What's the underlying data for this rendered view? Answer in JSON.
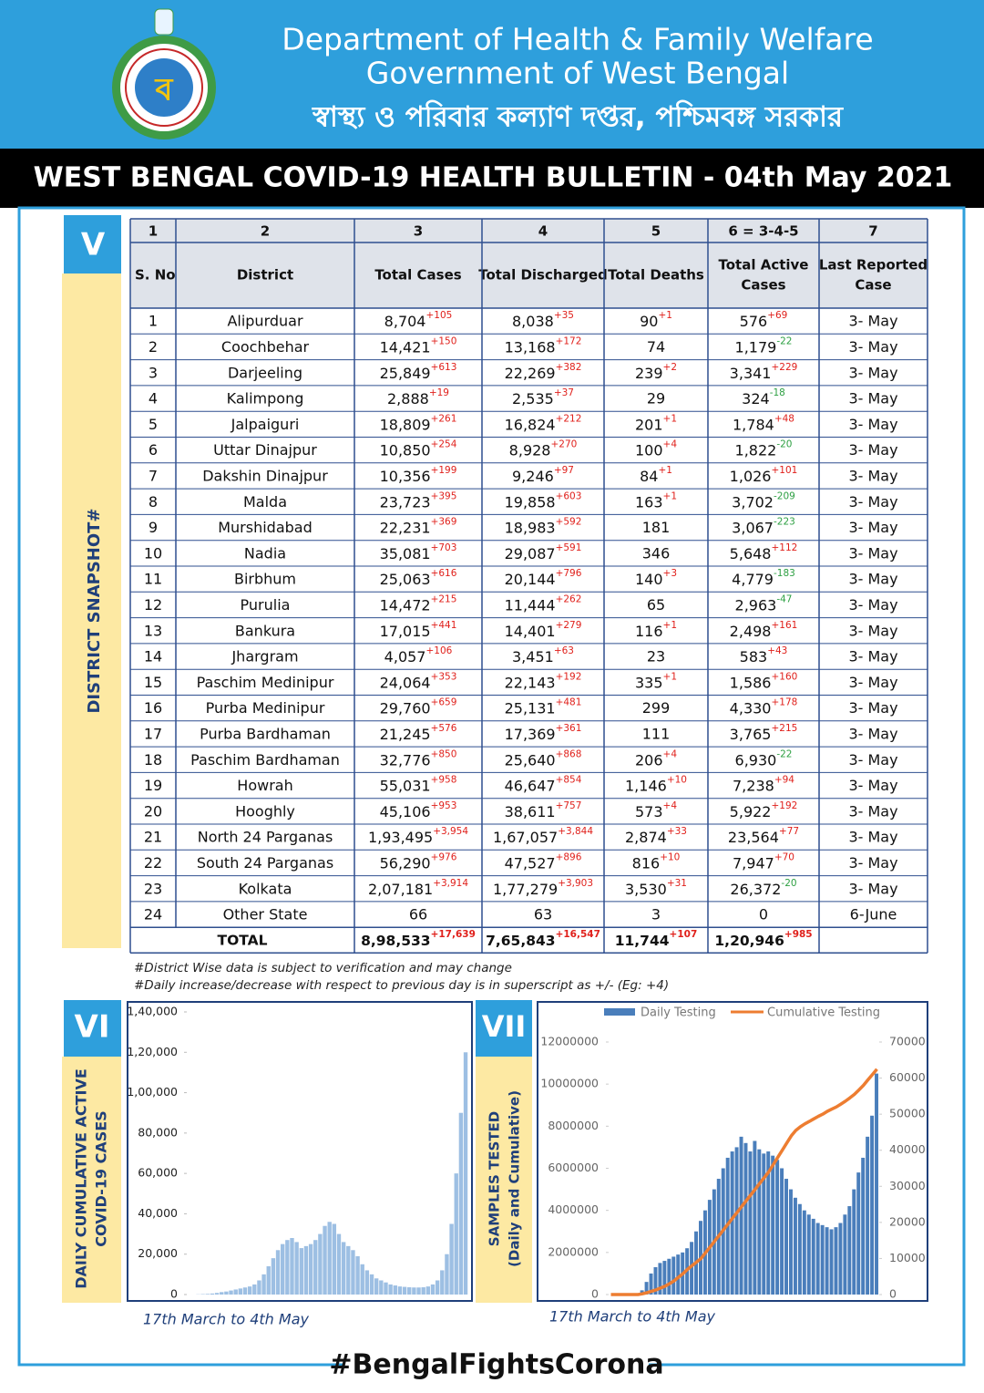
{
  "header": {
    "line1": "Department of Health & Family Welfare",
    "line2": "Government of West Bengal",
    "line3": "স্বাস্থ্য ও পরিবার কল্যাণ দপ্তর, পশ্চিমবঙ্গ সরকার",
    "title": "WEST BENGAL COVID-19 HEALTH BULLETIN - 04th May 2021"
  },
  "sections": {
    "district": {
      "numeral": "V",
      "label": "DISTRICT SNAPSHOT#"
    },
    "active": {
      "numeral": "VI",
      "label": [
        "DAILY  CUMULATIVE  ACTIVE",
        "COVID-19 CASES"
      ]
    },
    "tests": {
      "numeral": "VII",
      "label": [
        "SAMPLES TESTED",
        "(Daily and Cumulative)"
      ]
    }
  },
  "table": {
    "col_numbers": [
      "1",
      "2",
      "3",
      "4",
      "5",
      "6 = 3-4-5",
      "7"
    ],
    "headers": [
      [
        "S. No"
      ],
      [
        "District"
      ],
      [
        "Total Cases"
      ],
      [
        "Total Discharged"
      ],
      [
        "Total Deaths"
      ],
      [
        "Total Active",
        "Cases"
      ],
      [
        "Last Reported",
        "Case"
      ]
    ],
    "rows": [
      [
        "1",
        "Alipurduar",
        {
          "text": "8,704",
          "sup": "+105"
        },
        {
          "text": "8,038",
          "sup": "+35"
        },
        {
          "text": "90",
          "sup": "+1"
        },
        {
          "text": "576",
          "sup": "+69"
        },
        "3- May"
      ],
      [
        "2",
        "Coochbehar",
        {
          "text": "14,421",
          "sup": "+150"
        },
        {
          "text": "13,168",
          "sup": "+172"
        },
        "74",
        {
          "text": "1,179",
          "sup": "-22"
        },
        "3- May"
      ],
      [
        "3",
        "Darjeeling",
        {
          "text": "25,849",
          "sup": "+613"
        },
        {
          "text": "22,269",
          "sup": "+382"
        },
        {
          "text": "239",
          "sup": "+2"
        },
        {
          "text": "3,341",
          "sup": "+229"
        },
        "3- May"
      ],
      [
        "4",
        "Kalimpong",
        {
          "text": "2,888",
          "sup": "+19"
        },
        {
          "text": "2,535",
          "sup": "+37"
        },
        "29",
        {
          "text": "324",
          "sup": "-18"
        },
        "3- May"
      ],
      [
        "5",
        "Jalpaiguri",
        {
          "text": "18,809",
          "sup": "+261"
        },
        {
          "text": "16,824",
          "sup": "+212"
        },
        {
          "text": "201",
          "sup": "+1"
        },
        {
          "text": "1,784",
          "sup": "+48"
        },
        "3- May"
      ],
      [
        "6",
        "Uttar Dinajpur",
        {
          "text": "10,850",
          "sup": "+254"
        },
        {
          "text": "8,928",
          "sup": "+270"
        },
        {
          "text": "100",
          "sup": "+4"
        },
        {
          "text": "1,822",
          "sup": "-20"
        },
        "3- May"
      ],
      [
        "7",
        "Dakshin Dinajpur",
        {
          "text": "10,356",
          "sup": "+199"
        },
        {
          "text": "9,246",
          "sup": "+97"
        },
        {
          "text": "84",
          "sup": "+1"
        },
        {
          "text": "1,026",
          "sup": "+101"
        },
        "3- May"
      ],
      [
        "8",
        "Malda",
        {
          "text": "23,723",
          "sup": "+395"
        },
        {
          "text": "19,858",
          "sup": "+603"
        },
        {
          "text": "163",
          "sup": "+1"
        },
        {
          "text": "3,702",
          "sup": "-209"
        },
        "3- May"
      ],
      [
        "9",
        "Murshidabad",
        {
          "text": "22,231",
          "sup": "+369"
        },
        {
          "text": "18,983",
          "sup": "+592"
        },
        "181",
        {
          "text": "3,067",
          "sup": "-223"
        },
        "3- May"
      ],
      [
        "10",
        "Nadia",
        {
          "text": "35,081",
          "sup": "+703"
        },
        {
          "text": "29,087",
          "sup": "+591"
        },
        "346",
        {
          "text": "5,648",
          "sup": "+112"
        },
        "3- May"
      ],
      [
        "11",
        "Birbhum",
        {
          "text": "25,063",
          "sup": "+616"
        },
        {
          "text": "20,144",
          "sup": "+796"
        },
        {
          "text": "140",
          "sup": "+3"
        },
        {
          "text": "4,779",
          "sup": "-183"
        },
        "3- May"
      ],
      [
        "12",
        "Purulia",
        {
          "text": "14,472",
          "sup": "+215"
        },
        {
          "text": "11,444",
          "sup": "+262"
        },
        "65",
        {
          "text": "2,963",
          "sup": "-47"
        },
        "3- May"
      ],
      [
        "13",
        "Bankura",
        {
          "text": "17,015",
          "sup": "+441"
        },
        {
          "text": "14,401",
          "sup": "+279"
        },
        {
          "text": "116",
          "sup": "+1"
        },
        {
          "text": "2,498",
          "sup": "+161"
        },
        "3- May"
      ],
      [
        "14",
        "Jhargram",
        {
          "text": "4,057",
          "sup": "+106"
        },
        {
          "text": "3,451",
          "sup": "+63"
        },
        "23",
        {
          "text": "583",
          "sup": "+43"
        },
        "3- May"
      ],
      [
        "15",
        "Paschim Medinipur",
        {
          "text": "24,064",
          "sup": "+353"
        },
        {
          "text": "22,143",
          "sup": "+192"
        },
        {
          "text": "335",
          "sup": "+1"
        },
        {
          "text": "1,586",
          "sup": "+160"
        },
        "3- May"
      ],
      [
        "16",
        "Purba Medinipur",
        {
          "text": "29,760",
          "sup": "+659"
        },
        {
          "text": "25,131",
          "sup": "+481"
        },
        "299",
        {
          "text": "4,330",
          "sup": "+178"
        },
        "3- May"
      ],
      [
        "17",
        "Purba Bardhaman",
        {
          "text": "21,245",
          "sup": "+576"
        },
        {
          "text": "17,369",
          "sup": "+361"
        },
        "111",
        {
          "text": "3,765",
          "sup": "+215"
        },
        "3- May"
      ],
      [
        "18",
        "Paschim Bardhaman",
        {
          "text": "32,776",
          "sup": "+850"
        },
        {
          "text": "25,640",
          "sup": "+868"
        },
        {
          "text": "206",
          "sup": "+4"
        },
        {
          "text": "6,930",
          "sup": "-22"
        },
        "3- May"
      ],
      [
        "19",
        "Howrah",
        {
          "text": "55,031",
          "sup": "+958"
        },
        {
          "text": "46,647",
          "sup": "+854"
        },
        {
          "text": "1,146",
          "sup": "+10"
        },
        {
          "text": "7,238",
          "sup": "+94"
        },
        "3- May"
      ],
      [
        "20",
        "Hooghly",
        {
          "text": "45,106",
          "sup": "+953"
        },
        {
          "text": "38,611",
          "sup": "+757"
        },
        {
          "text": "573",
          "sup": "+4"
        },
        {
          "text": "5,922",
          "sup": "+192"
        },
        "3- May"
      ],
      [
        "21",
        "North 24 Parganas",
        {
          "text": "1,93,495",
          "sup": "+3,954"
        },
        {
          "text": "1,67,057",
          "sup": "+3,844"
        },
        {
          "text": "2,874",
          "sup": "+33"
        },
        {
          "text": "23,564",
          "sup": "+77"
        },
        "3- May"
      ],
      [
        "22",
        "South 24 Parganas",
        {
          "text": "56,290",
          "sup": "+976"
        },
        {
          "text": "47,527",
          "sup": "+896"
        },
        {
          "text": "816",
          "sup": "+10"
        },
        {
          "text": "7,947",
          "sup": "+70"
        },
        "3- May"
      ],
      [
        "23",
        "Kolkata",
        {
          "text": "2,07,181",
          "sup": "+3,914"
        },
        {
          "text": "1,77,279",
          "sup": "+3,903"
        },
        {
          "text": "3,530",
          "sup": "+31"
        },
        {
          "text": "26,372",
          "sup": "-20"
        },
        "3- May"
      ],
      [
        "24",
        "Other State",
        "66",
        "63",
        "3",
        "0",
        "6-June"
      ]
    ],
    "total": {
      "label": "TOTAL",
      "cells": [
        {
          "text": "8,98,533",
          "sup": "+17,639"
        },
        {
          "text": "7,65,843",
          "sup": "+16,547"
        },
        {
          "text": "11,744",
          "sup": "+107"
        },
        {
          "text": "1,20,946",
          "sup": "+985"
        }
      ]
    }
  },
  "notes": [
    "#District Wise data is subject to verification and may change",
    "#Daily increase/decrease with respect to previous day is in superscript as +/- (Eg: +4)"
  ],
  "chart_data": [
    {
      "type": "bar",
      "caption": "17th March to 4th May",
      "color": "#9dbfe3",
      "values": [
        0,
        0,
        100,
        200,
        300,
        500,
        800,
        1200,
        1500,
        2000,
        2500,
        3000,
        3500,
        4000,
        5000,
        7000,
        10000,
        14000,
        18000,
        22000,
        25000,
        27000,
        28000,
        26000,
        23000,
        24000,
        25000,
        27000,
        30000,
        34000,
        36000,
        35000,
        30000,
        26000,
        24000,
        22000,
        19000,
        15000,
        12000,
        10000,
        8000,
        7000,
        6000,
        5000,
        4500,
        4000,
        3800,
        3600,
        3500,
        3500,
        3600,
        4000,
        5000,
        7000,
        12000,
        20000,
        35000,
        60000,
        90000,
        120000
      ],
      "ylim": [
        0,
        140000
      ],
      "yticks": [
        0,
        {
          "value": 20000,
          "label": "20,000"
        },
        {
          "value": 40000,
          "label": "40,000"
        },
        {
          "value": 60000,
          "label": "60,000"
        },
        {
          "value": 80000,
          "label": "80,000"
        },
        {
          "value": 100000,
          "label": "1,00,000"
        },
        {
          "value": 120000,
          "label": "1,20,000"
        },
        {
          "value": 140000,
          "label": "1,40,000"
        }
      ]
    },
    {
      "type": "bar_line",
      "caption": "17th March to 4th May",
      "legend": "top",
      "series": [
        {
          "name": "Daily Testing",
          "color": "#4a7ebb",
          "values": [
            0,
            0,
            0,
            0,
            0,
            0,
            0,
            200000,
            600000,
            1000000,
            1300000,
            1500000,
            1600000,
            1700000,
            1800000,
            1900000,
            2000000,
            2200000,
            2500000,
            3000000,
            3500000,
            4000000,
            4500000,
            5000000,
            5500000,
            6000000,
            6500000,
            6800000,
            7000000,
            7500000,
            7200000,
            6800000,
            7300000,
            6900000,
            6700000,
            6800000,
            6600000,
            6400000,
            6000000,
            5500000,
            5000000,
            4600000,
            4300000,
            4000000,
            3800000,
            3600000,
            3400000,
            3300000,
            3200000,
            3100000,
            3200000,
            3400000,
            3800000,
            4200000,
            5000000,
            5800000,
            6500000,
            7500000,
            8500000,
            10500000
          ]
        },
        {
          "name": "Cumulative Testing",
          "color": "#ed7d31",
          "axis": "y2",
          "values": [
            0,
            0,
            0,
            0,
            0,
            0,
            0,
            200,
            500,
            900,
            1300,
            1800,
            2300,
            3000,
            3800,
            4800,
            5800,
            7000,
            8000,
            9000,
            10000,
            11600,
            13200,
            14800,
            16400,
            18000,
            19600,
            21200,
            22800,
            24400,
            26000,
            27600,
            29200,
            30800,
            32400,
            34000,
            36000,
            38000,
            40000,
            42000,
            44000,
            45500,
            46500,
            47300,
            48000,
            48700,
            49400,
            50000,
            50800,
            51400,
            52000,
            52800,
            53600,
            54500,
            55500,
            56700,
            58000,
            59500,
            61000,
            62500
          ]
        }
      ],
      "ylim": [
        0,
        12000000
      ],
      "yticks": [
        0,
        2000000,
        4000000,
        6000000,
        8000000,
        10000000,
        12000000
      ],
      "y2lim": [
        0,
        70000
      ],
      "y2ticks": [
        0,
        10000,
        20000,
        30000,
        40000,
        50000,
        60000,
        70000
      ]
    }
  ],
  "footer": "#BengalFightsCorona"
}
